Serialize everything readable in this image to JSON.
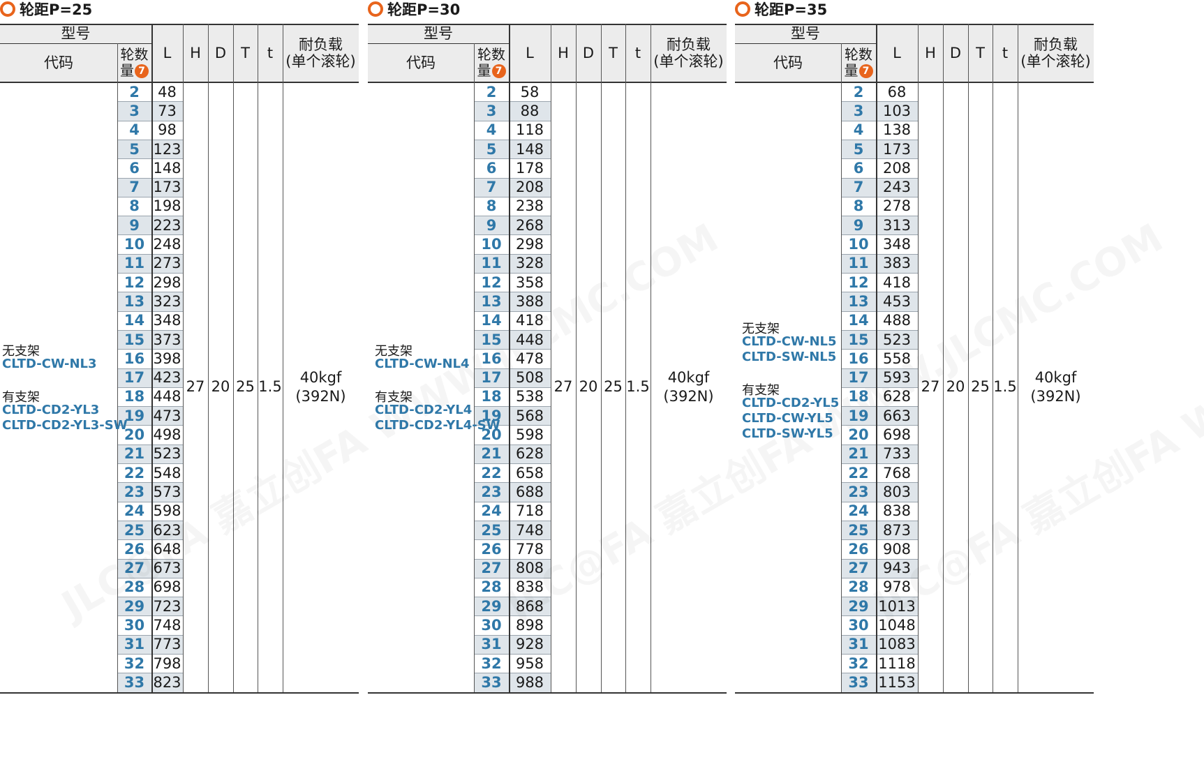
{
  "header_labels": {
    "model": "型号",
    "code": "代码",
    "wheel_count": "轮数量",
    "wheel_count_line1": "轮数",
    "wheel_count_line2": "量",
    "note_badge": "7",
    "L": "L",
    "H": "H",
    "D": "D",
    "T": "T",
    "t": "t",
    "load": "耐负载(单个滚轮)",
    "load_line1": "耐负载",
    "load_line2": "(单个滚轮)"
  },
  "wheel_counts": [
    "2",
    "3",
    "4",
    "5",
    "6",
    "7",
    "8",
    "9",
    "10",
    "11",
    "12",
    "13",
    "14",
    "15",
    "16",
    "17",
    "18",
    "19",
    "20",
    "21",
    "22",
    "23",
    "24",
    "25",
    "26",
    "27",
    "28",
    "29",
    "30",
    "31",
    "32",
    "33"
  ],
  "panels": [
    {
      "title": "轮距P=25",
      "code_groups": [
        {
          "label": "无支架",
          "codes": [
            "CLTD-CW-NL3"
          ]
        },
        {
          "label": "有支架",
          "codes": [
            "CLTD-CD2-YL3",
            "CLTD-CD2-YL3-SW"
          ]
        }
      ],
      "L": [
        "48",
        "73",
        "98",
        "123",
        "148",
        "173",
        "198",
        "223",
        "248",
        "273",
        "298",
        "323",
        "348",
        "373",
        "398",
        "423",
        "448",
        "473",
        "498",
        "523",
        "548",
        "573",
        "598",
        "623",
        "648",
        "673",
        "698",
        "723",
        "748",
        "773",
        "798",
        "823"
      ],
      "H": "27",
      "D": "20",
      "T": "25",
      "t": "1.5",
      "load_kgf": "40kgf",
      "load_n": "(392N)"
    },
    {
      "title": "轮距P=30",
      "code_groups": [
        {
          "label": "无支架",
          "codes": [
            "CLTD-CW-NL4"
          ]
        },
        {
          "label": "有支架",
          "codes": [
            "CLTD-CD2-YL4",
            "CLTD-CD2-YL4-SW"
          ]
        }
      ],
      "L": [
        "58",
        "88",
        "118",
        "148",
        "178",
        "208",
        "238",
        "268",
        "298",
        "328",
        "358",
        "388",
        "418",
        "448",
        "478",
        "508",
        "538",
        "568",
        "598",
        "628",
        "658",
        "688",
        "718",
        "748",
        "778",
        "808",
        "838",
        "868",
        "898",
        "928",
        "958",
        "988"
      ],
      "H": "27",
      "D": "20",
      "T": "25",
      "t": "1.5",
      "load_kgf": "40kgf",
      "load_n": "(392N)"
    },
    {
      "title": "轮距P=35",
      "code_groups": [
        {
          "label": "无支架",
          "codes": [
            "CLTD-CW-NL5",
            "CLTD-SW-NL5"
          ]
        },
        {
          "label": "有支架",
          "codes": [
            "CLTD-CD2-YL5",
            "CLTD-CW-YL5",
            "CLTD-SW-YL5"
          ]
        }
      ],
      "L": [
        "68",
        "103",
        "138",
        "173",
        "208",
        "243",
        "278",
        "313",
        "348",
        "383",
        "418",
        "453",
        "488",
        "523",
        "558",
        "593",
        "628",
        "663",
        "698",
        "733",
        "768",
        "803",
        "838",
        "873",
        "908",
        "943",
        "978",
        "1013",
        "1048",
        "1083",
        "1118",
        "1153"
      ],
      "H": "27",
      "D": "20",
      "T": "25",
      "t": "1.5",
      "load_kgf": "40kgf",
      "load_n": "(392N)"
    }
  ],
  "colors": {
    "accent_orange": "#e8641c",
    "code_blue": "#2f78a8",
    "header_gray": "#ececec",
    "stripe_blue_gray": "#dfe5ea"
  },
  "watermark": "JLC@FA 嘉立创FA WWW.JLCMC.COM"
}
